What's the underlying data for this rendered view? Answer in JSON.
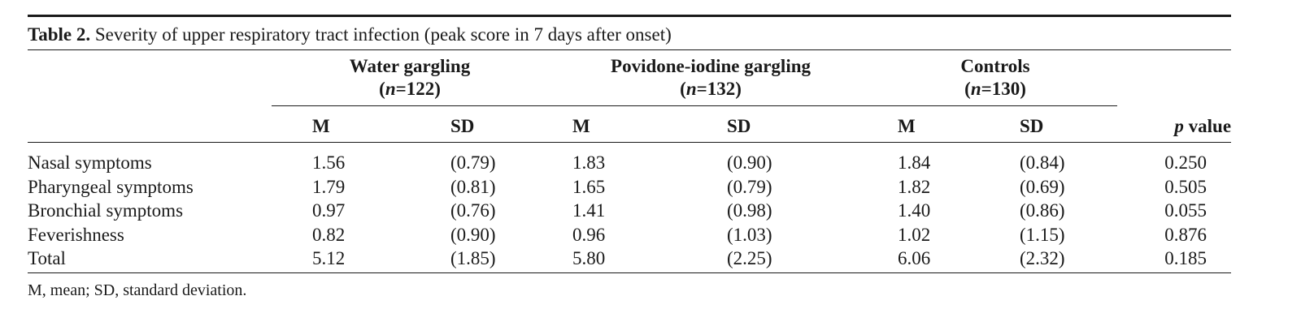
{
  "table": {
    "label": "Table 2.",
    "caption": "Severity of upper respiratory tract infection (peak score in 7 days after onset)",
    "groups": [
      {
        "name": "Water gargling",
        "n_prefix": "(",
        "n_var": "n",
        "n_value": "=122)"
      },
      {
        "name": "Povidone-iodine gargling",
        "n_prefix": "(",
        "n_var": "n",
        "n_value": "=132)"
      },
      {
        "name": "Controls",
        "n_prefix": "(",
        "n_var": "n",
        "n_value": "=130)"
      }
    ],
    "subheaders": [
      "M",
      "SD",
      "M",
      "SD",
      "M",
      "SD"
    ],
    "pvalue_header_var": "p",
    "pvalue_header_text": " value",
    "rows": [
      {
        "label": "Nasal symptoms",
        "cells": [
          "1.56",
          "(0.79)",
          "1.83",
          "(0.90)",
          "1.84",
          "(0.84)",
          "0.250"
        ]
      },
      {
        "label": "Pharyngeal symptoms",
        "cells": [
          "1.79",
          "(0.81)",
          "1.65",
          "(0.79)",
          "1.82",
          "(0.69)",
          "0.505"
        ]
      },
      {
        "label": "Bronchial symptoms",
        "cells": [
          "0.97",
          "(0.76)",
          "1.41",
          "(0.98)",
          "1.40",
          "(0.86)",
          "0.055"
        ]
      },
      {
        "label": "Feverishness",
        "cells": [
          "0.82",
          "(0.90)",
          "0.96",
          "(1.03)",
          "1.02",
          "(1.15)",
          "0.876"
        ]
      },
      {
        "label": "Total",
        "cells": [
          "5.12",
          "(1.85)",
          "5.80",
          "(2.25)",
          "6.06",
          "(2.32)",
          "0.185"
        ]
      }
    ],
    "footnote": "M, mean; SD, standard deviation."
  }
}
